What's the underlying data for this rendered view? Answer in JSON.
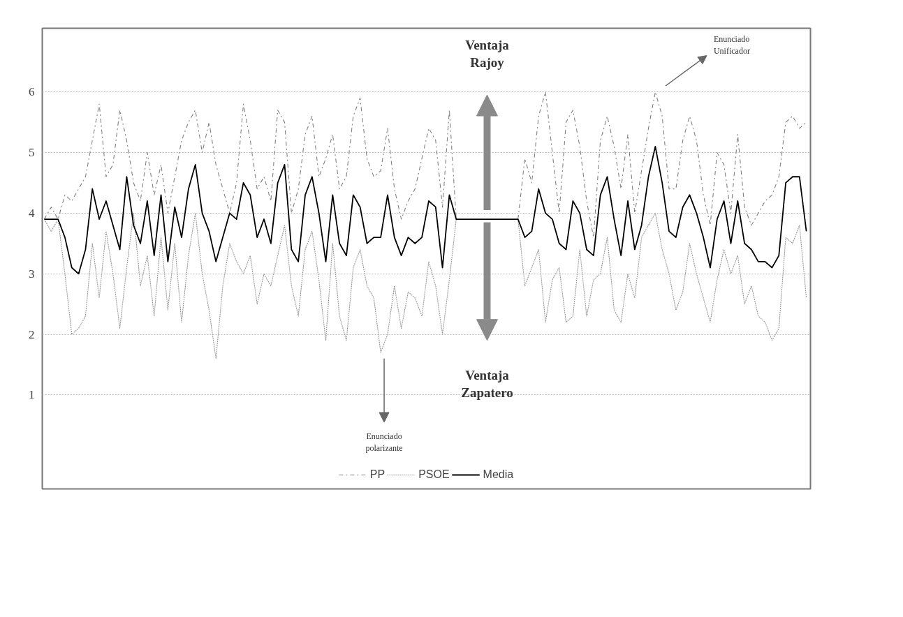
{
  "chart_data": {
    "type": "line",
    "categories": [
      null,
      null,
      null,
      null,
      null,
      null,
      null,
      null,
      null,
      null,
      null,
      null,
      null,
      null,
      null,
      null,
      null,
      null,
      null,
      null,
      null,
      null,
      null,
      null,
      null,
      null,
      null,
      null,
      null,
      null,
      null,
      null,
      null,
      null,
      null,
      null,
      null,
      null,
      null,
      null,
      null,
      null,
      null,
      null,
      null,
      null,
      null,
      null,
      null,
      null,
      null,
      null,
      null,
      null,
      null,
      null,
      null,
      null,
      null,
      null,
      null,
      null,
      null,
      null,
      null,
      null,
      null,
      null,
      null,
      null,
      null,
      null,
      null,
      null,
      null,
      null,
      null,
      null,
      null,
      null,
      null,
      null,
      null,
      null,
      null,
      null,
      null,
      null,
      null,
      null,
      null,
      null,
      null,
      null,
      null,
      null,
      null,
      null,
      null,
      null,
      null,
      null,
      null,
      null,
      null,
      null,
      null,
      null,
      null,
      null,
      null,
      null
    ],
    "series": [
      {
        "name": "PP",
        "color": "#808080",
        "line_style": "dashdot",
        "values": [
          3.9,
          4.1,
          3.9,
          4.3,
          4.2,
          4.4,
          4.6,
          5.2,
          5.8,
          4.6,
          4.8,
          5.7,
          5.2,
          4.5,
          4.2,
          5.0,
          4.3,
          4.8,
          4.0,
          4.6,
          5.2,
          5.5,
          5.7,
          5.0,
          5.5,
          4.8,
          4.4,
          4.0,
          4.5,
          5.8,
          5.2,
          4.4,
          4.6,
          4.2,
          5.7,
          5.5,
          4.0,
          4.4,
          5.3,
          5.6,
          4.6,
          4.9,
          5.3,
          4.4,
          4.6,
          5.6,
          5.9,
          4.9,
          4.6,
          4.7,
          5.4,
          4.4,
          3.9,
          4.2,
          4.4,
          4.9,
          5.4,
          5.2,
          4.1,
          5.7,
          3.9,
          null,
          null,
          null,
          null,
          null,
          null,
          null,
          null,
          3.9,
          4.9,
          4.5,
          5.6,
          6.0,
          5.0,
          4.0,
          5.5,
          5.7,
          5.1,
          4.2,
          3.6,
          5.2,
          5.6,
          5.1,
          4.4,
          5.3,
          4.0,
          4.7,
          5.4,
          6.0,
          5.6,
          4.4,
          4.4,
          5.2,
          5.6,
          5.2,
          4.3,
          3.8,
          5.0,
          4.8,
          4.0,
          5.3,
          4.1,
          3.8,
          4.0,
          4.2,
          4.3,
          4.6,
          5.5,
          5.6,
          5.4,
          5.5
        ]
      },
      {
        "name": "PSOE",
        "color": "#999999",
        "line_style": "dotted",
        "values": [
          3.9,
          3.7,
          3.9,
          3.0,
          2.0,
          2.1,
          2.3,
          3.5,
          2.6,
          3.7,
          3.0,
          2.1,
          3.1,
          4.0,
          2.8,
          3.3,
          2.3,
          3.6,
          2.4,
          3.5,
          2.2,
          3.3,
          4.0,
          3.0,
          2.4,
          1.6,
          2.8,
          3.5,
          3.2,
          3.0,
          3.3,
          2.5,
          3.0,
          2.8,
          3.3,
          3.8,
          2.8,
          2.3,
          3.4,
          3.7,
          2.9,
          1.9,
          3.5,
          2.3,
          1.9,
          3.1,
          3.4,
          2.8,
          2.6,
          1.7,
          2.0,
          2.8,
          2.1,
          2.7,
          2.6,
          2.3,
          3.2,
          2.8,
          2.0,
          2.9,
          3.9,
          null,
          null,
          null,
          null,
          null,
          null,
          null,
          null,
          3.9,
          2.8,
          3.1,
          3.4,
          2.2,
          2.9,
          3.1,
          2.2,
          2.3,
          3.4,
          2.3,
          2.9,
          3.0,
          3.6,
          2.4,
          2.2,
          3.0,
          2.6,
          3.6,
          3.8,
          4.0,
          3.4,
          3.0,
          2.4,
          2.7,
          3.5,
          3.0,
          2.6,
          2.2,
          2.9,
          3.4,
          3.0,
          3.3,
          2.5,
          2.8,
          2.3,
          2.2,
          1.9,
          2.1,
          3.6,
          3.5,
          3.8,
          2.6
        ]
      },
      {
        "name": "Media",
        "color": "#000000",
        "line_style": "solid",
        "values": [
          3.9,
          3.9,
          3.9,
          3.6,
          3.1,
          3.0,
          3.4,
          4.4,
          3.9,
          4.2,
          3.8,
          3.4,
          4.6,
          3.8,
          3.5,
          4.2,
          3.3,
          4.3,
          3.2,
          4.1,
          3.6,
          4.4,
          4.8,
          4.0,
          3.7,
          3.2,
          3.6,
          4.0,
          3.9,
          4.5,
          4.3,
          3.6,
          3.9,
          3.5,
          4.5,
          4.8,
          3.4,
          3.2,
          4.3,
          4.6,
          4.0,
          3.2,
          4.3,
          3.5,
          3.3,
          4.3,
          4.1,
          3.5,
          3.6,
          3.6,
          4.3,
          3.6,
          3.3,
          3.6,
          3.5,
          3.6,
          4.2,
          4.1,
          3.1,
          4.3,
          3.9,
          3.9,
          3.9,
          3.9,
          3.9,
          3.9,
          3.9,
          3.9,
          3.9,
          3.9,
          3.6,
          3.7,
          4.4,
          4.0,
          3.9,
          3.5,
          3.4,
          4.2,
          4.0,
          3.4,
          3.3,
          4.3,
          4.6,
          3.9,
          3.3,
          4.2,
          3.4,
          3.8,
          4.6,
          5.1,
          4.5,
          3.7,
          3.6,
          4.1,
          4.3,
          4.0,
          3.6,
          3.1,
          3.9,
          4.2,
          3.5,
          4.2,
          3.5,
          3.4,
          3.2,
          3.2,
          3.1,
          3.3,
          4.5,
          4.6,
          4.6,
          3.7
        ]
      }
    ],
    "ylim": [
      -0.55,
      7.05
    ],
    "yticks": [
      1,
      2,
      3,
      4,
      5,
      6
    ],
    "grid": "y",
    "legend": "bottom",
    "annotations": [
      "Ventaja Rajoy",
      "Ventaja Zapatero",
      "Enunciado Unificador",
      "Enunciado polarizante"
    ]
  }
}
